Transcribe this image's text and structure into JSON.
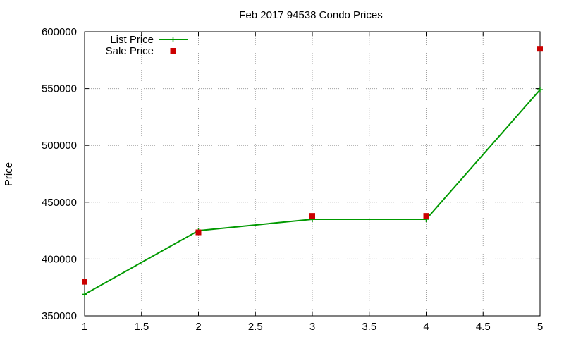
{
  "chart_data": {
    "type": "line",
    "title": "Feb 2017 94538 Condo Prices",
    "xlabel": "",
    "ylabel": "Price",
    "xlim": [
      1,
      5
    ],
    "ylim": [
      350000,
      600000
    ],
    "x_ticks": [
      "1",
      "1.5",
      "2",
      "2.5",
      "3",
      "3.5",
      "4",
      "4.5",
      "5"
    ],
    "y_ticks": [
      "350000",
      "400000",
      "450000",
      "500000",
      "550000",
      "600000"
    ],
    "grid": true,
    "legend_position": "top-left",
    "series": [
      {
        "name": "List Price",
        "kind": "line-points",
        "marker": "plus",
        "color": "#009900",
        "x": [
          1,
          2,
          3,
          4,
          5
        ],
        "y": [
          369000,
          425000,
          435000,
          435000,
          549000
        ]
      },
      {
        "name": "Sale Price",
        "kind": "points",
        "marker": "square",
        "color": "#cc0000",
        "x": [
          1,
          2,
          3,
          4,
          5
        ],
        "y": [
          380000,
          423500,
          438000,
          438000,
          585000
        ]
      }
    ]
  }
}
